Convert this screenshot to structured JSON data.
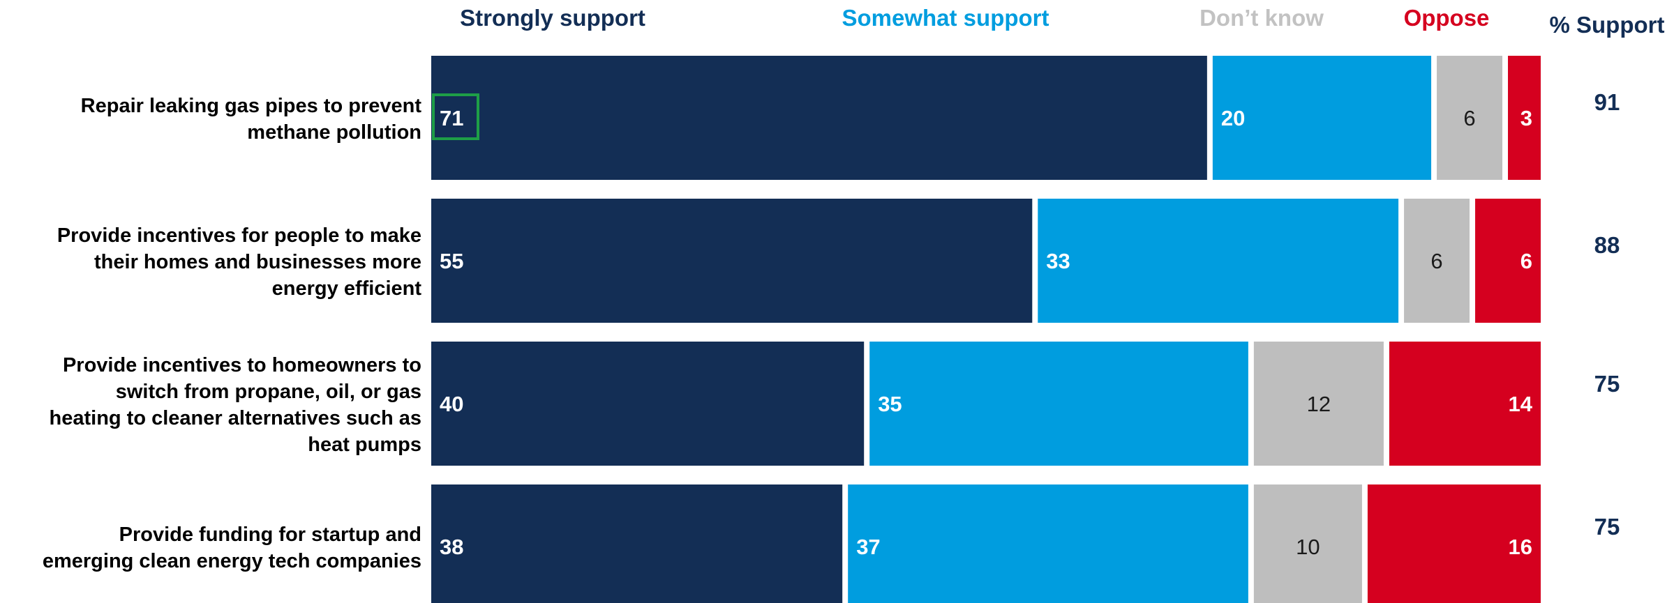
{
  "chart_data": {
    "type": "bar",
    "orientation": "horizontal",
    "stacked": true,
    "categories": [
      [
        "Repair leaking gas pipes to prevent",
        "methane pollution"
      ],
      [
        "Provide incentives for people to make",
        "their homes and businesses more",
        "energy efficient"
      ],
      [
        "Provide incentives to homeowners to",
        "switch from propane, oil, or gas",
        "heating to cleaner alternatives such as",
        "heat pumps"
      ],
      [
        "Provide funding for startup and",
        "emerging clean energy tech companies"
      ]
    ],
    "series": [
      {
        "name": "Strongly support",
        "color": "#132e55",
        "label_color": "#ffffff",
        "label_bold": true,
        "label_align": "start",
        "values": [
          71,
          55,
          40,
          38
        ]
      },
      {
        "name": "Somewhat support",
        "color": "#009ddf",
        "label_color": "#ffffff",
        "label_bold": true,
        "label_align": "start",
        "values": [
          20,
          33,
          35,
          37
        ]
      },
      {
        "name": "Don’t know",
        "color": "#bebebe",
        "label_color": "#1a1a1a",
        "label_bold": false,
        "label_align": "center",
        "values": [
          6,
          6,
          12,
          10
        ]
      },
      {
        "name": "Oppose",
        "color": "#d5001f",
        "label_color": "#ffffff",
        "label_bold": true,
        "label_align": "end",
        "values": [
          3,
          6,
          14,
          16
        ]
      }
    ],
    "support_header": "% Support",
    "support_values": [
      91,
      88,
      75,
      75
    ],
    "support_color": "#132e55",
    "highlight": {
      "row": 0,
      "series": 0,
      "color": "#1e9e47"
    },
    "legend_colors": [
      "#132e55",
      "#009ddf",
      "#c2c2c2",
      "#d5001f"
    ],
    "legend": "top",
    "grid": false
  }
}
